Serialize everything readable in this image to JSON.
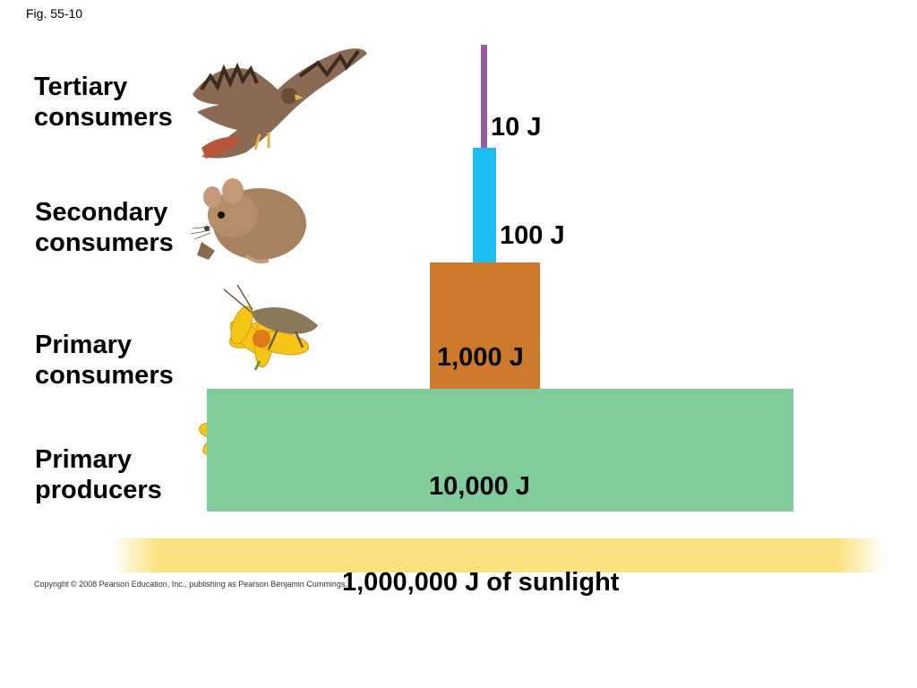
{
  "figure": {
    "label": "Fig. 55-10",
    "copyright": "Copyright © 2008 Pearson Education, Inc., publishing as Pearson Benjamin Cummings."
  },
  "levels": [
    {
      "line1": "Tertiary",
      "line2": "consumers",
      "energy": "10 J",
      "color": "#9a5ba3",
      "organism": "hawk-icon"
    },
    {
      "line1": "Secondary",
      "line2": "consumers",
      "energy": "100 J",
      "color": "#1cbdf0",
      "organism": "mouse-icon"
    },
    {
      "line1": "Primary",
      "line2": "consumers",
      "energy": "1,000 J",
      "color": "#cd7a2c",
      "organism": "grasshopper-icon"
    },
    {
      "line1": "Primary",
      "line2": "producers",
      "energy": "10,000 J",
      "color": "#80cc9a",
      "organism": "flower-icon"
    }
  ],
  "sunlight": {
    "label": "1,000,000 J of sunlight",
    "color": "#fce27e"
  }
}
